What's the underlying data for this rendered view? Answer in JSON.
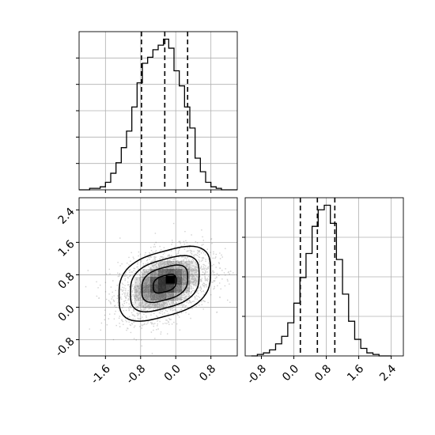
{
  "colors": {
    "axes": "#000000",
    "grid": "#b0b0b0",
    "hist": "#000000",
    "quantile": "#000000",
    "points": "#555555",
    "density_fill": "#000000"
  },
  "chart_data": [
    {
      "panel": "marginal-x",
      "type": "histogram",
      "grid": true,
      "xlim": [
        -2.2,
        1.4
      ],
      "ylim": [
        0,
        1.05
      ],
      "x_ticks": [
        -1.6,
        -0.8,
        0.0,
        0.8
      ],
      "y_ticks_shown": 5,
      "y_tick_labels_visible": false,
      "bin_edges": [
        -2.2,
        -2.08,
        -1.96,
        -1.84,
        -1.72,
        -1.6,
        -1.48,
        -1.36,
        -1.24,
        -1.12,
        -1.0,
        -0.88,
        -0.76,
        -0.64,
        -0.52,
        -0.4,
        -0.28,
        -0.16,
        -0.04,
        0.08,
        0.2,
        0.32,
        0.44,
        0.56,
        0.68,
        0.8,
        0.92,
        1.04,
        1.16,
        1.28,
        1.4
      ],
      "counts": [
        0.0,
        0.0,
        0.01,
        0.01,
        0.02,
        0.05,
        0.11,
        0.18,
        0.28,
        0.39,
        0.55,
        0.71,
        0.84,
        0.88,
        0.93,
        0.96,
        1.0,
        0.94,
        0.79,
        0.69,
        0.55,
        0.41,
        0.21,
        0.12,
        0.05,
        0.02,
        0.01,
        0.0,
        0.0,
        0.0
      ],
      "quantiles": [
        -0.78,
        -0.25,
        0.27
      ]
    },
    {
      "panel": "marginal-y",
      "type": "histogram",
      "grid": true,
      "xlim": [
        -1.2,
        2.7
      ],
      "ylim": [
        0,
        1.05
      ],
      "x_ticks": [
        -0.8,
        0.0,
        0.8,
        1.6,
        2.4
      ],
      "x_tick_labels": [
        "-0.8",
        "0.0",
        "0.8",
        "1.6",
        "2.4"
      ],
      "y_ticks_shown": 3,
      "y_tick_labels_visible": false,
      "bin_edges": [
        -1.05,
        -0.9,
        -0.75,
        -0.6,
        -0.45,
        -0.3,
        -0.15,
        0.0,
        0.15,
        0.3,
        0.45,
        0.6,
        0.75,
        0.9,
        1.05,
        1.2,
        1.35,
        1.5,
        1.65,
        1.8,
        1.95,
        2.1,
        2.25,
        2.4
      ],
      "counts": [
        0.0,
        0.01,
        0.02,
        0.04,
        0.08,
        0.13,
        0.22,
        0.35,
        0.52,
        0.68,
        0.86,
        0.97,
        1.0,
        0.88,
        0.64,
        0.41,
        0.23,
        0.11,
        0.05,
        0.02,
        0.01,
        0.0,
        0.0
      ],
      "quantiles": [
        0.16,
        0.58,
        1.01
      ]
    },
    {
      "panel": "joint",
      "type": "scatter-density",
      "grid": true,
      "xlim": [
        -2.2,
        1.4
      ],
      "ylim": [
        -1.2,
        2.7
      ],
      "x_ticks": [
        -1.6,
        -0.8,
        0.0,
        0.8
      ],
      "x_tick_labels": [
        "-1.6",
        "-0.8",
        "0.0",
        "0.8"
      ],
      "y_ticks": [
        -0.8,
        0.0,
        0.8,
        1.6,
        2.4
      ],
      "y_tick_labels": [
        "-0.8",
        "0.0",
        "0.8",
        "1.6",
        "2.4"
      ],
      "distribution": {
        "x_mean": -0.25,
        "x_sd": 0.52,
        "y_mean": 0.58,
        "y_sd": 0.43,
        "correlation": 0.35
      },
      "density_peak": [
        -0.12,
        0.68
      ],
      "contour_levels_sigma": [
        0.5,
        1.0,
        1.5,
        2.0
      ]
    }
  ]
}
